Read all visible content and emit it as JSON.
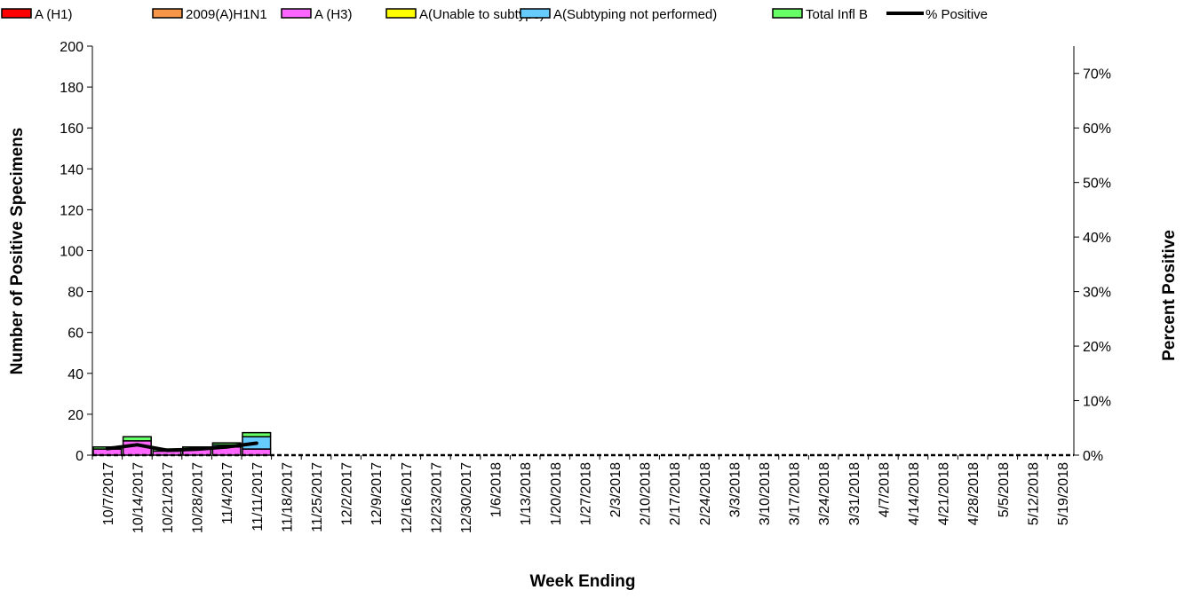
{
  "chart_data": {
    "type": "bar",
    "stacked": true,
    "xlabel": "Week Ending",
    "ylabel": "Number of  Positive Specimens",
    "y2label": "Percent Positive",
    "ylim": [
      0,
      200
    ],
    "y_ticks": [
      0,
      20,
      40,
      60,
      80,
      100,
      120,
      140,
      160,
      180,
      200
    ],
    "y2lim": [
      0,
      0.75
    ],
    "y2_ticks": [
      "0%",
      "10%",
      "20%",
      "30%",
      "40%",
      "50%",
      "60%",
      "70%"
    ],
    "legend_position": "top",
    "categories": [
      "10/7/2017",
      "10/14/2017",
      "10/21/2017",
      "10/28/2017",
      "11/4/2017",
      "11/11/2017",
      "11/18/2017",
      "11/25/2017",
      "12/2/2017",
      "12/9/2017",
      "12/16/2017",
      "12/23/2017",
      "12/30/2017",
      "1/6/2018",
      "1/13/2018",
      "1/20/2018",
      "1/27/2018",
      "2/3/2018",
      "2/10/2018",
      "2/17/2018",
      "2/24/2018",
      "3/3/2018",
      "3/10/2018",
      "3/17/2018",
      "3/24/2018",
      "3/31/2018",
      "4/7/2018",
      "4/14/2018",
      "4/21/2018",
      "4/28/2018",
      "5/5/2018",
      "5/12/2018",
      "5/19/2018"
    ],
    "series": [
      {
        "name": "A (H1)",
        "color": "#ff0000",
        "values": [
          0,
          0,
          0,
          0,
          0,
          0,
          null,
          null,
          null,
          null,
          null,
          null,
          null,
          null,
          null,
          null,
          null,
          null,
          null,
          null,
          null,
          null,
          null,
          null,
          null,
          null,
          null,
          null,
          null,
          null,
          null,
          null,
          null
        ]
      },
      {
        "name": "2009(A)H1N1",
        "color": "#f79646",
        "values": [
          0,
          0,
          0,
          0,
          0,
          0,
          null,
          null,
          null,
          null,
          null,
          null,
          null,
          null,
          null,
          null,
          null,
          null,
          null,
          null,
          null,
          null,
          null,
          null,
          null,
          null,
          null,
          null,
          null,
          null,
          null,
          null,
          null
        ]
      },
      {
        "name": "A (H3)",
        "color": "#ff66ff",
        "values": [
          3,
          7,
          2,
          3,
          4,
          3,
          null,
          null,
          null,
          null,
          null,
          null,
          null,
          null,
          null,
          null,
          null,
          null,
          null,
          null,
          null,
          null,
          null,
          null,
          null,
          null,
          null,
          null,
          null,
          null,
          null,
          null,
          null
        ]
      },
      {
        "name": "A(Unable to subtype)",
        "color": "#ffff00",
        "values": [
          0,
          0,
          0,
          0,
          0,
          0,
          null,
          null,
          null,
          null,
          null,
          null,
          null,
          null,
          null,
          null,
          null,
          null,
          null,
          null,
          null,
          null,
          null,
          null,
          null,
          null,
          null,
          null,
          null,
          null,
          null,
          null,
          null
        ]
      },
      {
        "name": "A(Subtyping not performed)",
        "color": "#66ccff",
        "values": [
          0,
          0,
          0,
          0,
          1,
          6,
          null,
          null,
          null,
          null,
          null,
          null,
          null,
          null,
          null,
          null,
          null,
          null,
          null,
          null,
          null,
          null,
          null,
          null,
          null,
          null,
          null,
          null,
          null,
          null,
          null,
          null,
          null
        ]
      },
      {
        "name": "Total Infl B",
        "color": "#66ff66",
        "values": [
          1,
          2,
          1,
          1,
          1,
          2,
          null,
          null,
          null,
          null,
          null,
          null,
          null,
          null,
          null,
          null,
          null,
          null,
          null,
          null,
          null,
          null,
          null,
          null,
          null,
          null,
          null,
          null,
          null,
          null,
          null,
          null,
          null
        ]
      }
    ],
    "line_series": {
      "name": "% Positive",
      "color": "#000000",
      "values": [
        0.012,
        0.019,
        0.009,
        0.011,
        0.015,
        0.022,
        null,
        null,
        null,
        null,
        null,
        null,
        null,
        null,
        null,
        null,
        null,
        null,
        null,
        null,
        null,
        null,
        null,
        null,
        null,
        null,
        null,
        null,
        null,
        null,
        null,
        null,
        null
      ]
    }
  }
}
